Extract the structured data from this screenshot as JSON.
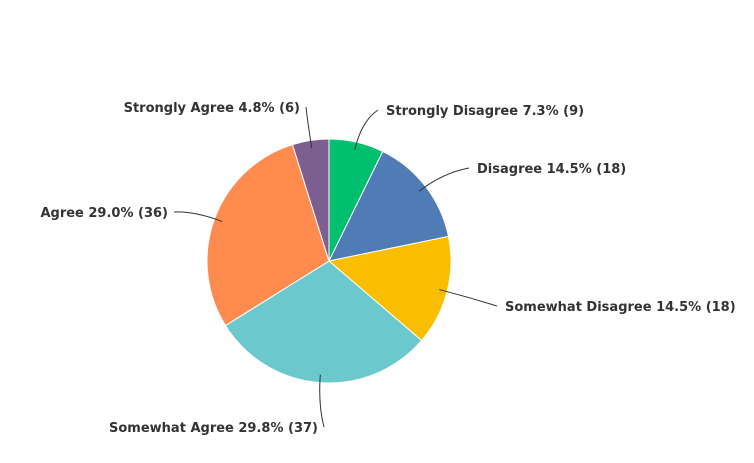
{
  "chart_data": {
    "type": "pie",
    "start": "top",
    "direction": "clockwise",
    "slices": [
      {
        "label": "Strongly Disagree 7.3% (9)",
        "category": "Strongly Disagree",
        "percent": 7.3,
        "count": 9,
        "color": "#00bf6f"
      },
      {
        "label": "Disagree 14.5% (18)",
        "category": "Disagree",
        "percent": 14.5,
        "count": 18,
        "color": "#507cb6"
      },
      {
        "label": "Somewhat Disagree 14.5% (18)",
        "category": "Somewhat Disagree",
        "percent": 14.5,
        "count": 18,
        "color": "#f9be00"
      },
      {
        "label": "Somewhat Agree 29.8% (37)",
        "category": "Somewhat Agree",
        "percent": 29.8,
        "count": 37,
        "color": "#6bc8cd"
      },
      {
        "label": "Agree 29.0% (36)",
        "category": "Agree",
        "percent": 29.0,
        "count": 36,
        "color": "#ff8b4f"
      },
      {
        "label": "Strongly Agree 4.8% (6)",
        "category": "Strongly Agree",
        "percent": 4.8,
        "count": 6,
        "color": "#7d5e90"
      }
    ]
  }
}
